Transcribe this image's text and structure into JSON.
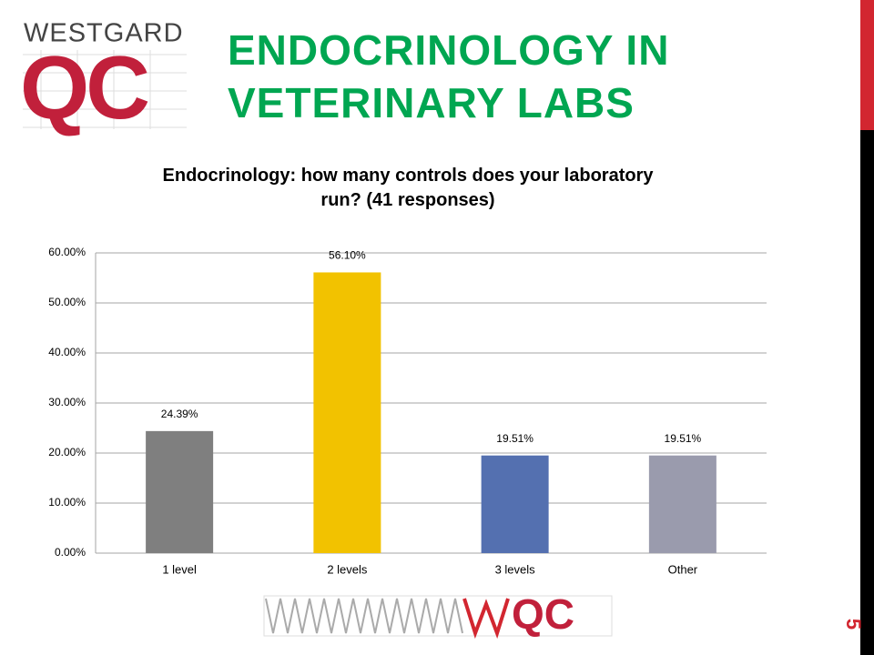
{
  "slide": {
    "title": "ENDOCRINOLOGY IN VETERINARY LABS",
    "logo_name": "WESTGARD",
    "logo_mark": "QC",
    "footer_logo": "QC",
    "page_number": "5"
  },
  "chart_data": {
    "type": "bar",
    "title": "Endocrinology: how many controls does your laboratory run? (41 responses)",
    "categories": [
      "1 level",
      "2 levels",
      "3 levels",
      "Other"
    ],
    "values": [
      24.39,
      56.1,
      19.51,
      19.51
    ],
    "value_labels": [
      "24.39%",
      "56.10%",
      "19.51%",
      "19.51%"
    ],
    "colors": [
      "#7f7f7f",
      "#f2c200",
      "#5470b0",
      "#9a9bad"
    ],
    "ylim": [
      0,
      60
    ],
    "yticks": [
      {
        "value": 0,
        "label": "0.00%"
      },
      {
        "value": 10,
        "label": "10.00%"
      },
      {
        "value": 20,
        "label": "20.00%"
      },
      {
        "value": 30,
        "label": "30.00%"
      },
      {
        "value": 40,
        "label": "40.00%"
      },
      {
        "value": 50,
        "label": "50.00%"
      },
      {
        "value": 60,
        "label": "60.00%"
      }
    ],
    "grid": true
  }
}
